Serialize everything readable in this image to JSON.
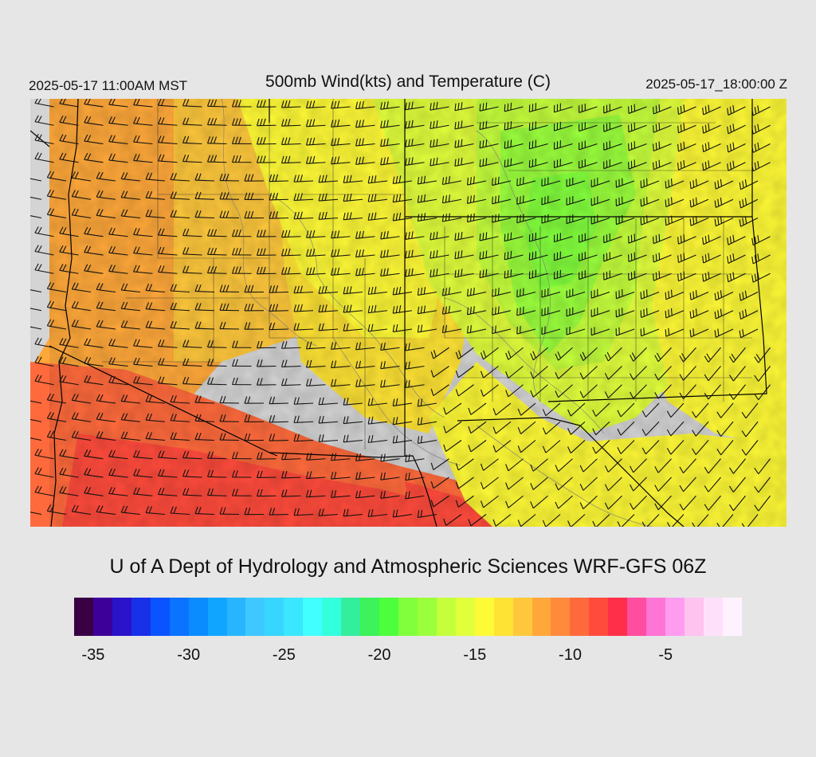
{
  "header": {
    "valid_local": "2025-05-17 11:00AM MST",
    "title": "500mb Wind(kts) and Temperature (C)",
    "valid_utc": "2025-05-17_18:00:00 Z"
  },
  "credit": "U of A Dept of Hydrology and Atmospheric Sciences WRF-GFS 06Z",
  "map": {
    "field": "500mb temperature (C) shaded with wind barbs (kts)",
    "background": "#d4d4d4",
    "barb_color": "#111111",
    "boundary_color": "#000000",
    "contour_color": "#7a7a7a",
    "warm_core": "southwest (Arizona / southern California) near -8 C",
    "cold_core": "north-central (Utah / Colorado) near -18 C"
  },
  "colorbar": {
    "colors": [
      "#3a0044",
      "#3d0099",
      "#2a13c8",
      "#1830e8",
      "#0a54ff",
      "#0a73ff",
      "#0a8cff",
      "#10a5ff",
      "#28b5ff",
      "#3fc8ff",
      "#37d6ff",
      "#3be6ff",
      "#41ffff",
      "#33ffdd",
      "#33ee9c",
      "#3df25a",
      "#4cff3c",
      "#82ff3c",
      "#9aff3c",
      "#c5ff3c",
      "#e2ff3c",
      "#fffa36",
      "#ffe334",
      "#ffc83c",
      "#ffa83a",
      "#ff8a3c",
      "#ff6a3c",
      "#ff4b3c",
      "#ff2f4a",
      "#ff4ea0",
      "#ff75d6",
      "#ff9cf0",
      "#ffc3f0",
      "#ffe0fa",
      "#fff2ff"
    ],
    "ticks": [
      "-35",
      "-30",
      "-25",
      "-20",
      "-15",
      "-10",
      "-5"
    ]
  }
}
